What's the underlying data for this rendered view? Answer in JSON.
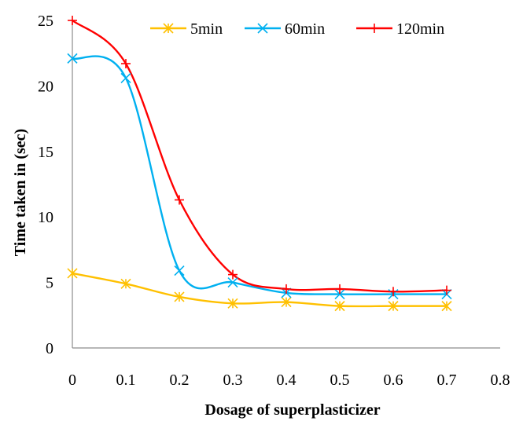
{
  "chart_data": {
    "type": "line",
    "title": "",
    "xlabel": "Dosage of  superplasticizer",
    "ylabel": "Time taken in (sec)",
    "xlim": [
      0,
      0.8
    ],
    "ylim": [
      0,
      25
    ],
    "x_ticks": [
      "0",
      "0.1",
      "0.2",
      "0.3",
      "0.4",
      "0.5",
      "0.6",
      "0.7",
      "0.8"
    ],
    "y_ticks": [
      "0",
      "5",
      "10",
      "15",
      "20",
      "25"
    ],
    "grid": false,
    "legend_position": "top",
    "smooth": true,
    "x": [
      0,
      0.1,
      0.2,
      0.3,
      0.4,
      0.5,
      0.6,
      0.7
    ],
    "series": [
      {
        "name": "5min",
        "color": "#FFC000",
        "marker": "star",
        "values": [
          5.7,
          4.9,
          3.9,
          3.4,
          3.5,
          3.2,
          3.2,
          3.2
        ]
      },
      {
        "name": "60min",
        "color": "#00B0F0",
        "marker": "x",
        "values": [
          22.1,
          20.6,
          5.9,
          5.0,
          4.2,
          4.1,
          4.1,
          4.1
        ]
      },
      {
        "name": "120min",
        "color": "#FF0000",
        "marker": "plus",
        "values": [
          25.0,
          21.7,
          11.3,
          5.6,
          4.5,
          4.5,
          4.3,
          4.4
        ]
      }
    ]
  }
}
